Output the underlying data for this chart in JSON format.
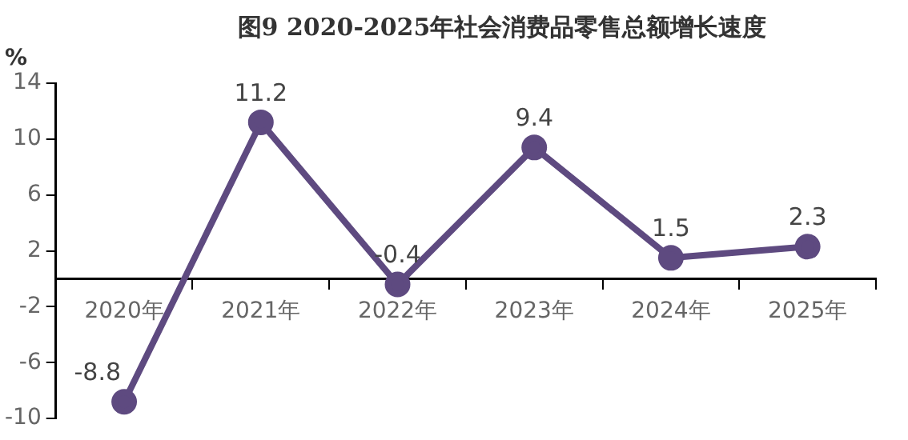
{
  "chart_data": {
    "type": "line",
    "title": "图9 2020-2025年社会消费品零售总额增长速度",
    "ylabel": "%",
    "categories": [
      "2020年",
      "2021年",
      "2022年",
      "2023年",
      "2024年",
      "2025年"
    ],
    "series": [
      {
        "color": "#5e4a80",
        "values": [
          -8.8,
          11.2,
          -0.4,
          9.4,
          1.5,
          2.3
        ]
      }
    ],
    "ylim": [
      -10,
      14
    ],
    "yticks": [
      -10,
      -6,
      -2,
      2,
      6,
      10,
      14
    ],
    "grid": false,
    "legend": false,
    "marker": "circle",
    "line_style": "solid",
    "data_labels": true
  }
}
